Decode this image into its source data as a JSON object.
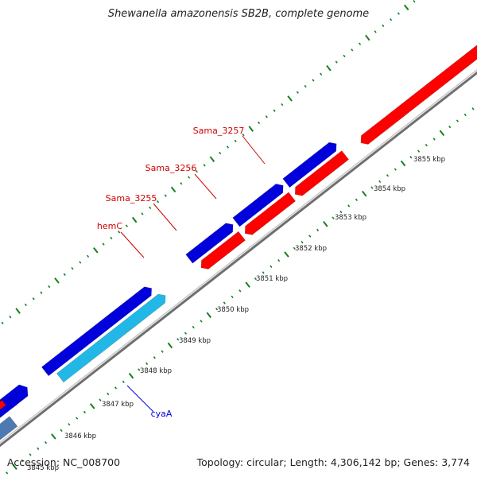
{
  "header": {
    "title": "Shewanella amazonensis SB2B, complete genome"
  },
  "footer": {
    "accession": "Accession: NC_008700",
    "stats": "Topology: circular; Length: 4,306,142 bp; Genes: 3,774"
  },
  "colors": {
    "forward_gene": "#0000dd",
    "reverse_gene": "#ff0000",
    "cyan_feature": "#21b8e8",
    "steelblue_feature": "#4f79b2",
    "slate_feature": "#44447a",
    "backbone": "#888888",
    "tick_marks": "#11811b",
    "gene_label_red": "#d00000",
    "gene_label_blue": "#0000dd",
    "kbp_label": "#222222"
  },
  "scale_labels": [
    "3845 kbp",
    "3846 kbp",
    "3847 kbp",
    "3848 kbp",
    "3849 kbp",
    "3850 kbp",
    "3851 kbp",
    "3852 kbp",
    "3853 kbp",
    "3854 kbp",
    "3855 kbp"
  ],
  "gene_labels": [
    {
      "text": "Sama_3257",
      "strand": "reverse"
    },
    {
      "text": "Sama_3256",
      "strand": "reverse"
    },
    {
      "text": "Sama_3255",
      "strand": "reverse"
    },
    {
      "text": "hemC",
      "strand": "reverse"
    },
    {
      "text": "cyaA",
      "strand": "forward"
    }
  ]
}
